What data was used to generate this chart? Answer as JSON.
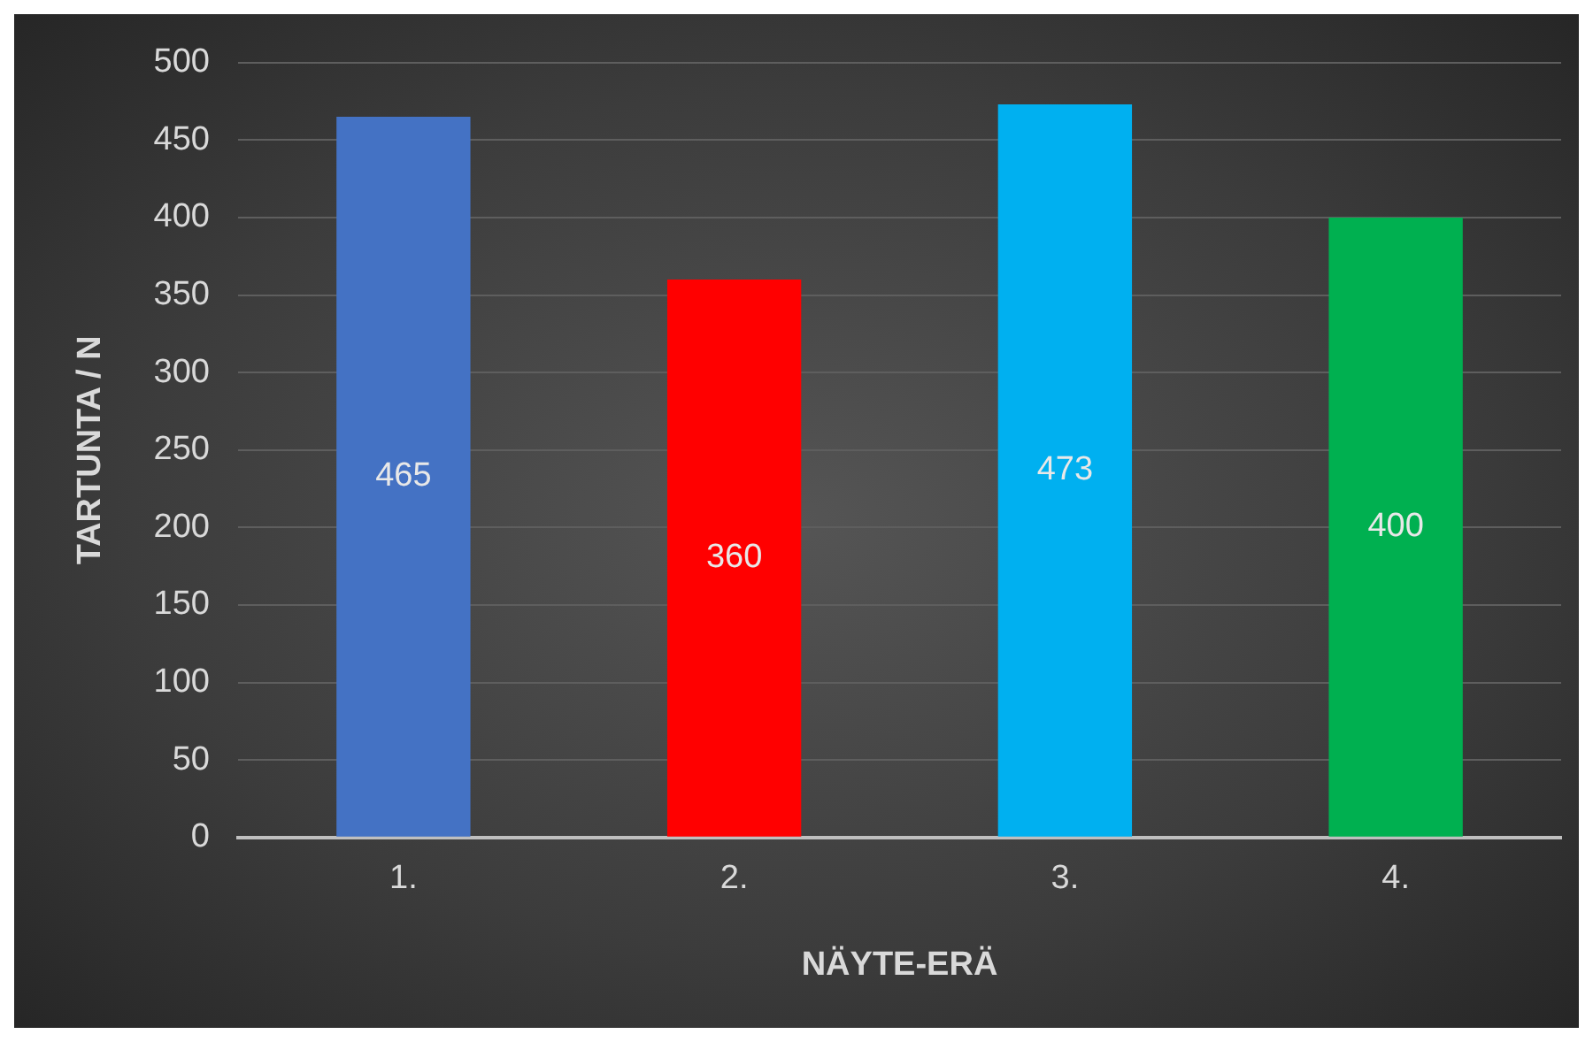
{
  "chart_data": {
    "type": "bar",
    "xlabel": "NÄYTE-ERÄ",
    "ylabel": "TARTUNTA / N",
    "categories": [
      "1.",
      "2.",
      "3.",
      "4."
    ],
    "values": [
      465,
      360,
      473,
      400
    ],
    "colors": [
      "#4472c4",
      "#ff0000",
      "#00b0f0",
      "#00b050"
    ],
    "ylim": [
      0,
      500
    ],
    "yticks": [
      0,
      50,
      100,
      150,
      200,
      250,
      300,
      350,
      400,
      450,
      500
    ],
    "grid": "y",
    "data_labels": true,
    "legend": false
  }
}
